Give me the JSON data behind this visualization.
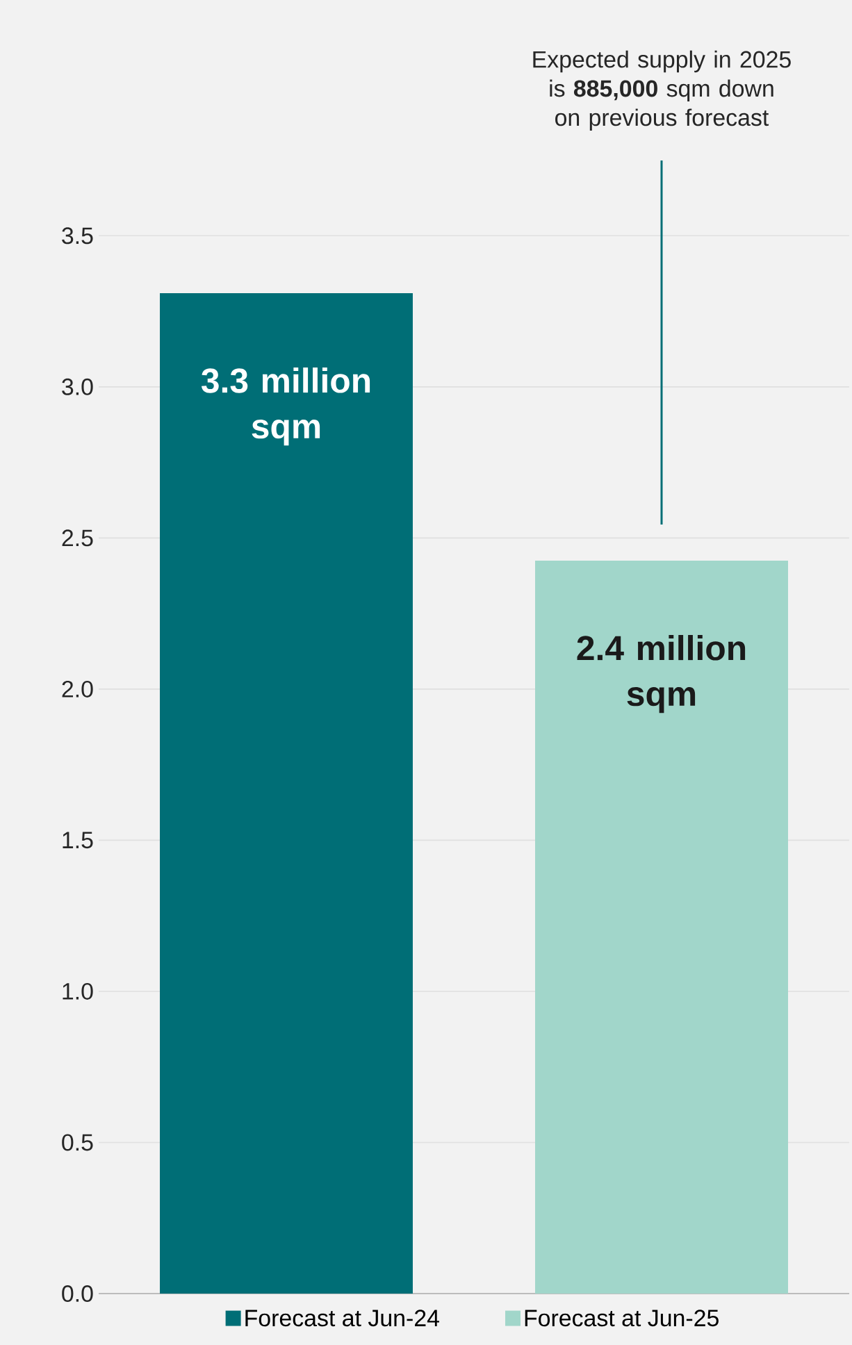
{
  "chart_data": {
    "type": "bar",
    "categories": [
      null,
      null
    ],
    "series": [
      {
        "name": "Forecast at Jun-24",
        "color": "#006e76",
        "values": [
          3.31,
          null
        ],
        "value_labels": [
          "3.3 million sqm",
          null
        ]
      },
      {
        "name": "Forecast at Jun-25",
        "color": "#a1d6ca",
        "values": [
          null,
          2.425
        ],
        "value_labels": [
          null,
          "2.4 million sqm"
        ]
      }
    ],
    "ylim": [
      0,
      4.28
    ],
    "yticks": [
      {
        "value": 0,
        "label": "0.0"
      },
      0.5,
      {
        "value": 1,
        "label": "1.0"
      },
      1.5,
      {
        "value": 2,
        "label": "2.0"
      },
      2.5,
      {
        "value": 3,
        "label": "3.0"
      },
      3.5
    ],
    "grid": "y",
    "legend": "bottom",
    "annotations": [
      "Expected supply in 2025 is **885,000** sqm down on previous forecast"
    ]
  }
}
